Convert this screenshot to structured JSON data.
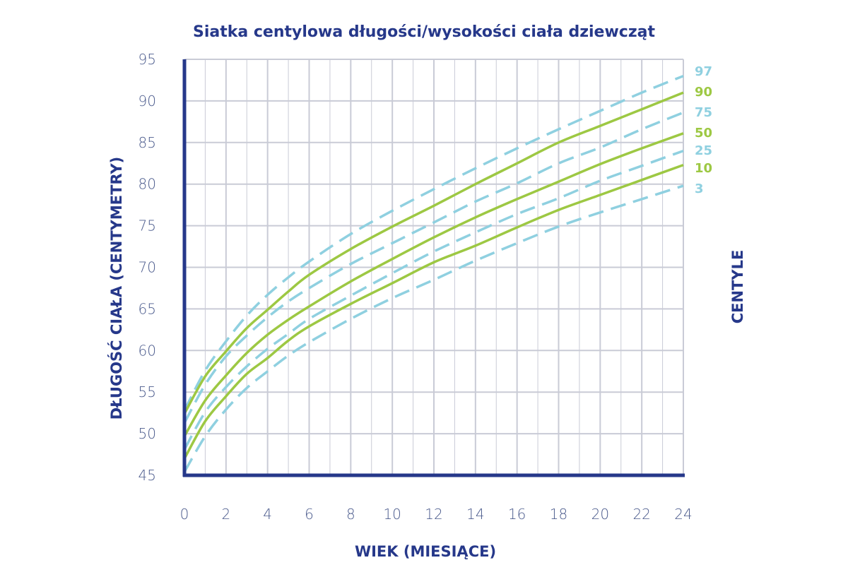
{
  "chart_data": {
    "type": "line",
    "title": "Siatka centylowa długości/wysokości ciała dziewcząt",
    "xlabel": "WIEK (MIESIĄCE)",
    "ylabel": "DŁUGOŚĆ CIAŁA (CENTYMETRY)",
    "legend_title": "CENTYLE",
    "legend_position": "right",
    "xlim": [
      0,
      24
    ],
    "ylim": [
      45,
      95
    ],
    "x_ticks": [
      "0",
      "2",
      "4",
      "6",
      "8",
      "10",
      "12",
      "14",
      "16",
      "18",
      "20",
      "22",
      "24"
    ],
    "y_ticks": [
      "45",
      "50",
      "55",
      "60",
      "65",
      "70",
      "75",
      "80",
      "85",
      "90",
      "95"
    ],
    "grid": true,
    "x": [
      0,
      1,
      2,
      3,
      4,
      5,
      6,
      8,
      10,
      12,
      14,
      16,
      18,
      20,
      22,
      24
    ],
    "series": [
      {
        "name": "97",
        "style": "dashed",
        "color": "#8fd0e0",
        "values": [
          52.8,
          57.6,
          61.1,
          64.2,
          66.7,
          68.8,
          70.7,
          74.0,
          76.8,
          79.4,
          81.9,
          84.3,
          86.6,
          88.8,
          91.0,
          93.0
        ]
      },
      {
        "name": "90",
        "style": "solid",
        "color": "#9dc843",
        "values": [
          52.4,
          56.9,
          59.9,
          62.7,
          64.9,
          67.1,
          69.1,
          72.2,
          74.9,
          77.4,
          80.0,
          82.5,
          85.0,
          87.0,
          89.0,
          91.0
        ]
      },
      {
        "name": "75",
        "style": "dashed",
        "color": "#8fd0e0",
        "values": [
          51.3,
          55.9,
          59.3,
          61.8,
          64.0,
          65.9,
          67.5,
          70.4,
          72.9,
          75.4,
          77.9,
          80.1,
          82.5,
          84.4,
          86.6,
          88.6
        ]
      },
      {
        "name": "50",
        "style": "solid",
        "color": "#9dc843",
        "values": [
          49.7,
          54.0,
          57.0,
          59.7,
          61.9,
          63.7,
          65.3,
          68.3,
          71.0,
          73.6,
          76.0,
          78.2,
          80.3,
          82.4,
          84.3,
          86.1
        ]
      },
      {
        "name": "25",
        "style": "dashed",
        "color": "#8fd0e0",
        "values": [
          48.1,
          52.6,
          55.6,
          58.1,
          60.2,
          62.0,
          63.8,
          66.6,
          69.3,
          71.9,
          74.2,
          76.4,
          78.3,
          80.4,
          82.2,
          84.0
        ]
      },
      {
        "name": "10",
        "style": "solid",
        "color": "#9dc843",
        "values": [
          47.0,
          51.5,
          54.5,
          57.2,
          59.1,
          61.2,
          62.9,
          65.6,
          68.1,
          70.6,
          72.6,
          74.8,
          76.9,
          78.7,
          80.5,
          82.3
        ]
      },
      {
        "name": "3",
        "style": "dashed",
        "color": "#8fd0e0",
        "values": [
          45.4,
          49.7,
          52.9,
          55.5,
          57.5,
          59.4,
          61.0,
          63.8,
          66.3,
          68.5,
          70.8,
          72.9,
          74.9,
          76.6,
          78.2,
          79.8
        ]
      }
    ],
    "colors": {
      "axis": "#26388a",
      "grid": "#c9cbd6",
      "title": "#26388a",
      "tick_label": "#4a5a8c"
    }
  }
}
